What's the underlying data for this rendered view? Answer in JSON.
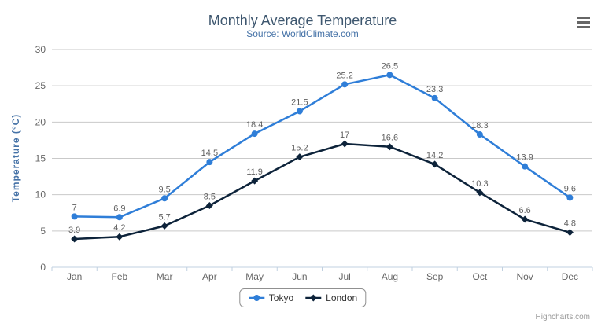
{
  "chart_data": {
    "type": "line",
    "title": "Monthly Average Temperature",
    "subtitle": "Source: WorldClimate.com",
    "xlabel": "",
    "ylabel": "Temperature (°C)",
    "categories": [
      "Jan",
      "Feb",
      "Mar",
      "Apr",
      "May",
      "Jun",
      "Jul",
      "Aug",
      "Sep",
      "Oct",
      "Nov",
      "Dec"
    ],
    "series": [
      {
        "name": "Tokyo",
        "color": "#2f7ed8",
        "marker": "circle",
        "values": [
          7.0,
          6.9,
          9.5,
          14.5,
          18.4,
          21.5,
          25.2,
          26.5,
          23.3,
          18.3,
          13.9,
          9.6
        ]
      },
      {
        "name": "London",
        "color": "#0d233a",
        "marker": "diamond",
        "values": [
          3.9,
          4.2,
          5.7,
          8.5,
          11.9,
          15.2,
          17.0,
          16.6,
          14.2,
          10.3,
          6.6,
          4.8
        ]
      }
    ],
    "ylim": [
      0,
      30
    ],
    "yticks": [
      0,
      5,
      10,
      15,
      20,
      25,
      30
    ],
    "grid": true,
    "data_labels": true,
    "legend_position": "bottom",
    "credits": "Highcharts.com"
  },
  "export_menu": {
    "icon": "hamburger-menu-icon"
  },
  "theme": {
    "background": "#ffffff",
    "title_color": "#3E576F",
    "subtitle_color": "#4572A7",
    "axis_title_color": "#4572A7",
    "axis_label_color": "#666666",
    "data_label_color": "#606060",
    "grid_color": "#C9C9C9",
    "axis_line_color": "#C0D0E0",
    "legend_border_color": "#909090",
    "legend_text_color": "#333333",
    "credits_color": "#999999",
    "menu_icon_color": "#666666"
  }
}
